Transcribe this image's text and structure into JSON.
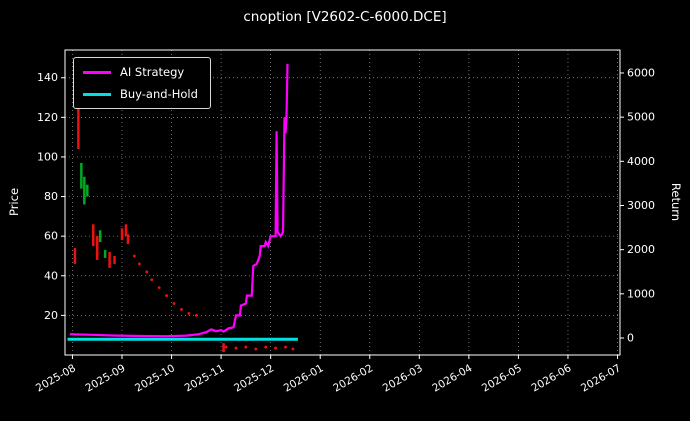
{
  "title": "cnoption [V2602-C-6000.DCE]",
  "chart_data": {
    "type": "line",
    "title": "cnoption [V2602-C-6000.DCE]",
    "background": "#000000",
    "grid": true,
    "x_ticks": [
      "2025-08",
      "2025-09",
      "2025-10",
      "2025-11",
      "2025-12",
      "2026-01",
      "2026-02",
      "2026-03",
      "2026-04",
      "2026-05",
      "2026-06",
      "2026-07"
    ],
    "x_range_months": [
      -0.15,
      11.05
    ],
    "left_axis": {
      "label": "Price",
      "ticks": [
        20,
        40,
        60,
        80,
        100,
        120,
        140
      ],
      "range": [
        0,
        154
      ]
    },
    "right_axis": {
      "label": "Return",
      "ticks": [
        0,
        1000,
        2000,
        3000,
        4000,
        5000,
        6000
      ],
      "range": [
        -385,
        6520
      ]
    },
    "legend": [
      {
        "label": "AI Strategy",
        "color": "#ff00ff"
      },
      {
        "label": "Buy-and-Hold",
        "color": "#00e0e0"
      }
    ],
    "series": [
      {
        "name": "AI Strategy",
        "color": "#ff00ff",
        "axis": "left",
        "points": [
          [
            -0.05,
            10.5
          ],
          [
            0.4,
            10.2
          ],
          [
            0.9,
            9.8
          ],
          [
            1.4,
            9.6
          ],
          [
            1.9,
            9.5
          ],
          [
            2.3,
            9.8
          ],
          [
            2.55,
            10.5
          ],
          [
            2.7,
            11.5
          ],
          [
            2.8,
            13
          ],
          [
            2.9,
            12
          ],
          [
            3.0,
            12.5
          ],
          [
            3.05,
            11.8
          ],
          [
            3.15,
            13.5
          ],
          [
            3.25,
            14
          ],
          [
            3.3,
            20
          ],
          [
            3.38,
            20
          ],
          [
            3.4,
            25
          ],
          [
            3.5,
            26
          ],
          [
            3.52,
            30
          ],
          [
            3.62,
            30
          ],
          [
            3.65,
            45
          ],
          [
            3.72,
            46
          ],
          [
            3.78,
            50
          ],
          [
            3.8,
            55
          ],
          [
            3.88,
            55
          ],
          [
            3.9,
            57
          ],
          [
            3.95,
            55
          ],
          [
            4.0,
            60
          ],
          [
            4.1,
            60
          ],
          [
            4.12,
            113
          ],
          [
            4.14,
            62
          ],
          [
            4.2,
            60
          ],
          [
            4.25,
            62
          ],
          [
            4.28,
            120
          ],
          [
            4.3,
            112
          ],
          [
            4.32,
            120
          ],
          [
            4.34,
            147
          ]
        ]
      },
      {
        "name": "Buy-and-Hold",
        "color": "#00e0e0",
        "axis": "left",
        "points": [
          [
            -0.1,
            8
          ],
          [
            4.55,
            8
          ]
        ]
      }
    ],
    "candles": {
      "up_color": "#00aa22",
      "down_color": "#ee1111",
      "segments": [
        {
          "x": 0.05,
          "low": 46,
          "high": 54,
          "dir": "down"
        },
        {
          "x": 0.12,
          "low": 104,
          "high": 131,
          "dir": "down"
        },
        {
          "x": 0.18,
          "low": 84,
          "high": 97,
          "dir": "up"
        },
        {
          "x": 0.24,
          "low": 76,
          "high": 90,
          "dir": "up"
        },
        {
          "x": 0.3,
          "low": 80,
          "high": 86,
          "dir": "up"
        },
        {
          "x": 0.42,
          "low": 55,
          "high": 66,
          "dir": "down"
        },
        {
          "x": 0.5,
          "low": 48,
          "high": 60,
          "dir": "down"
        },
        {
          "x": 0.56,
          "low": 57,
          "high": 63,
          "dir": "up"
        },
        {
          "x": 0.66,
          "low": 49,
          "high": 53,
          "dir": "up"
        },
        {
          "x": 0.75,
          "low": 44,
          "high": 52,
          "dir": "down"
        },
        {
          "x": 0.85,
          "low": 46,
          "high": 50,
          "dir": "down"
        },
        {
          "x": 1.0,
          "low": 58,
          "high": 64,
          "dir": "down"
        },
        {
          "x": 1.08,
          "low": 60,
          "high": 66,
          "dir": "down"
        },
        {
          "x": 1.12,
          "low": 56,
          "high": 61,
          "dir": "down"
        },
        {
          "x": 3.05,
          "low": 1.5,
          "high": 6,
          "dir": "down"
        }
      ]
    },
    "scatter": {
      "color": "#ee1111",
      "points": [
        [
          1.25,
          50
        ],
        [
          1.35,
          46
        ],
        [
          1.5,
          42
        ],
        [
          1.6,
          38
        ],
        [
          1.75,
          34
        ],
        [
          1.9,
          30
        ],
        [
          2.05,
          26
        ],
        [
          2.2,
          23
        ],
        [
          2.35,
          21
        ],
        [
          2.5,
          20
        ],
        [
          3.1,
          4
        ],
        [
          3.3,
          3.5
        ],
        [
          3.5,
          4
        ],
        [
          3.7,
          3
        ],
        [
          3.9,
          4
        ],
        [
          4.1,
          3.5
        ],
        [
          4.3,
          4
        ],
        [
          4.45,
          3
        ]
      ]
    }
  }
}
